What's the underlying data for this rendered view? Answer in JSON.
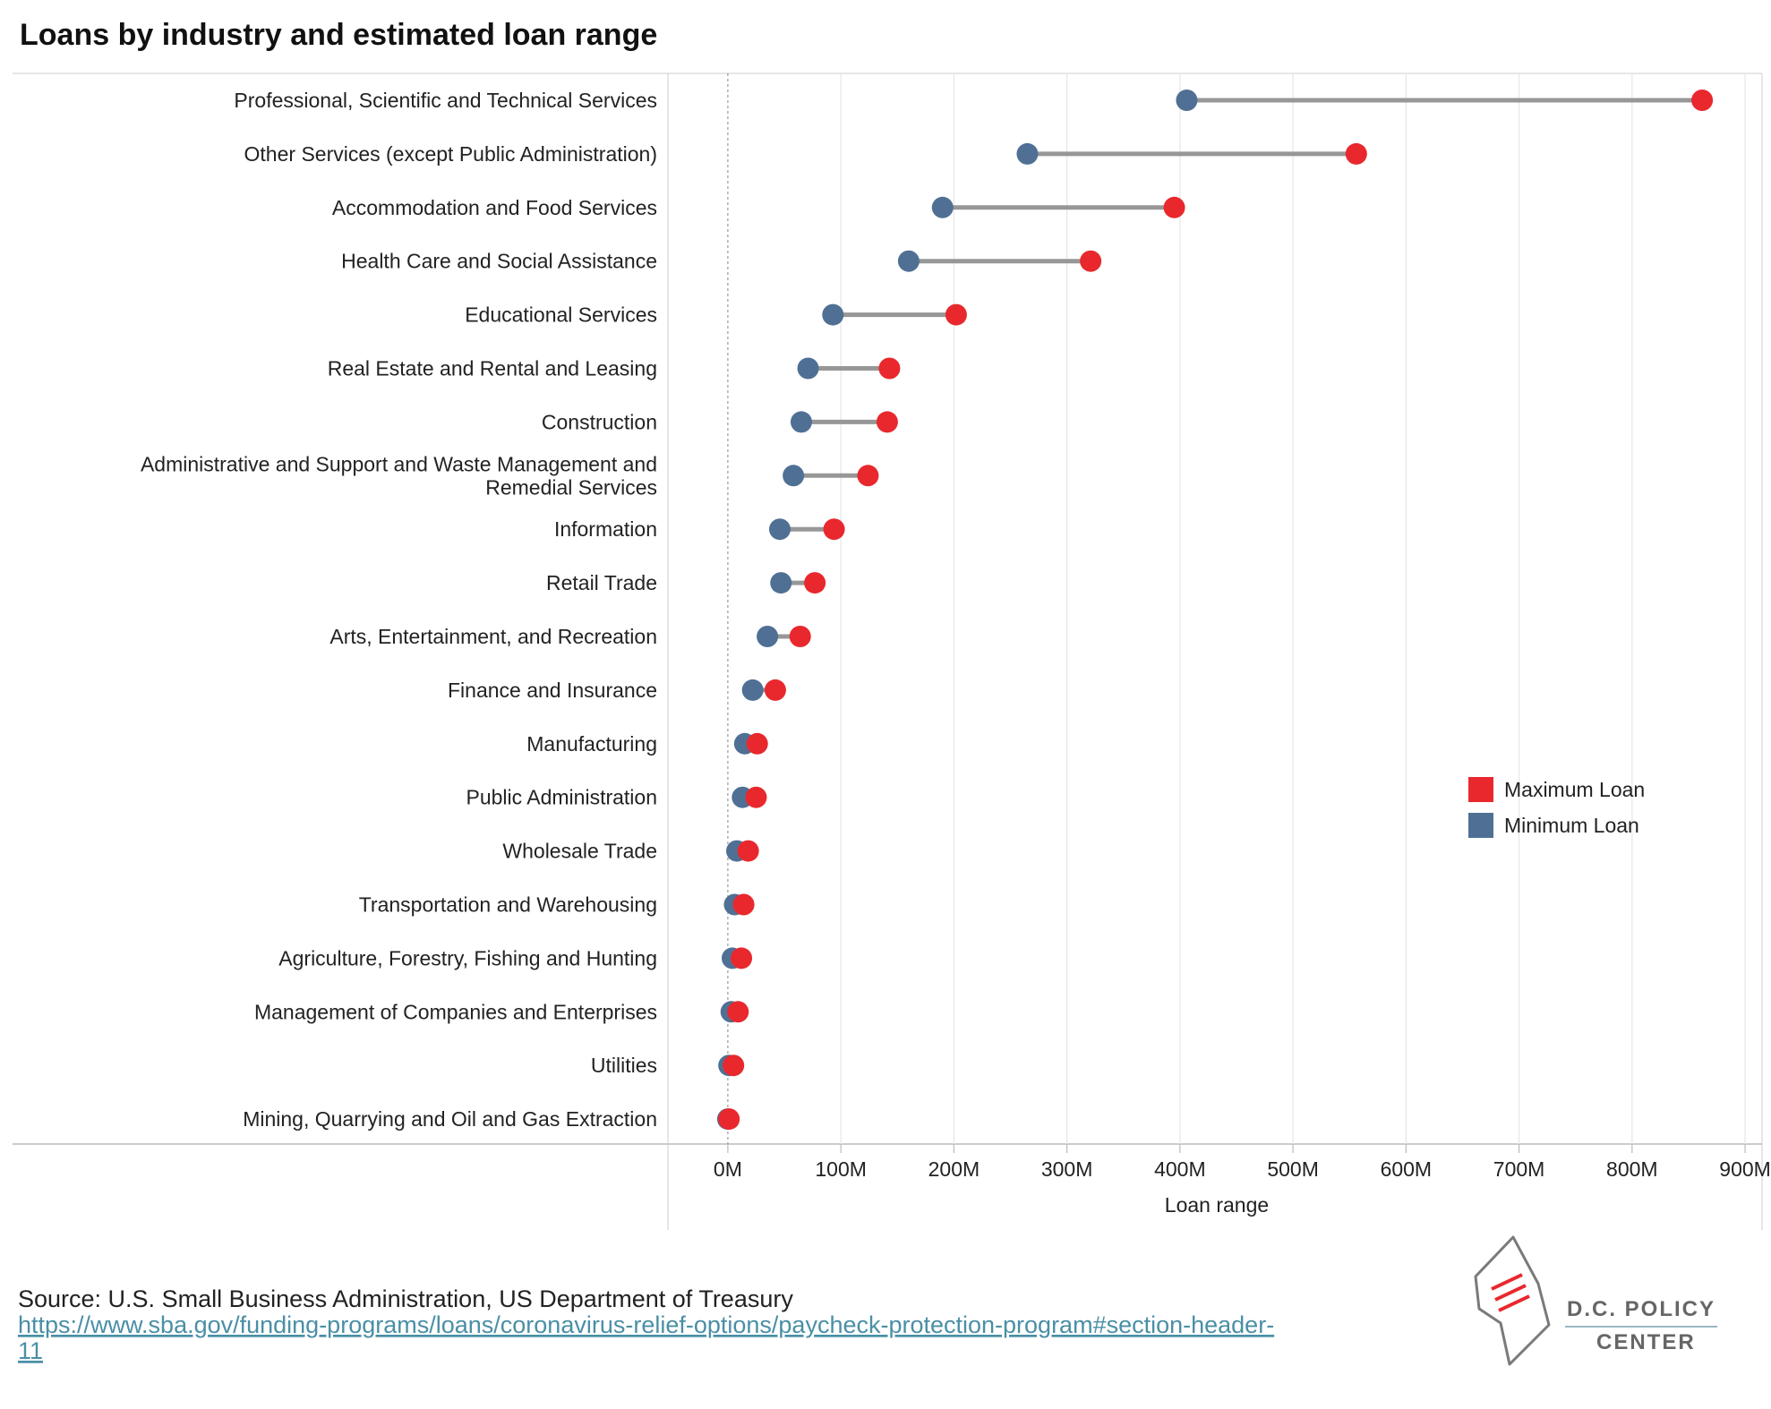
{
  "chart_data": {
    "type": "dumbbell",
    "title": "Loans by industry and estimated loan range",
    "xlabel": "Loan range",
    "ylabel": "",
    "xlim": [
      -53,
      915
    ],
    "ticks": [
      0,
      100,
      200,
      300,
      400,
      500,
      600,
      700,
      800,
      900
    ],
    "tick_labels": [
      "0M",
      "100M",
      "200M",
      "300M",
      "400M",
      "500M",
      "600M",
      "700M",
      "800M",
      "900M"
    ],
    "unit": "M",
    "grid": true,
    "legend_position": "right",
    "categories": [
      [
        "Professional, Scientific and Technical Services"
      ],
      [
        "Other Services (except Public Administration)"
      ],
      [
        "Accommodation and Food Services"
      ],
      [
        "Health Care and Social Assistance"
      ],
      [
        "Educational Services"
      ],
      [
        "Real Estate and Rental and Leasing"
      ],
      [
        "Construction"
      ],
      [
        "Administrative and Support and Waste Management and",
        "Remedial Services"
      ],
      [
        "Information"
      ],
      [
        "Retail Trade"
      ],
      [
        "Arts, Entertainment, and Recreation"
      ],
      [
        "Finance and Insurance"
      ],
      [
        "Manufacturing"
      ],
      [
        "Public Administration"
      ],
      [
        "Wholesale Trade"
      ],
      [
        "Transportation and Warehousing"
      ],
      [
        "Agriculture, Forestry, Fishing and Hunting"
      ],
      [
        "Management of Companies and Enterprises"
      ],
      [
        "Utilities"
      ],
      [
        "Mining, Quarrying and Oil and Gas Extraction"
      ]
    ],
    "series": [
      {
        "name": "Maximum Loan",
        "color": "#e8282d",
        "values": [
          862,
          556,
          395,
          321,
          202,
          143,
          141,
          124,
          94,
          77,
          64,
          42,
          26,
          25,
          18,
          14,
          12,
          9,
          5,
          1
        ]
      },
      {
        "name": "Minimum Loan",
        "color": "#4f7094",
        "values": [
          406,
          265,
          190,
          160,
          93,
          71,
          65,
          58,
          46,
          47,
          35,
          22,
          15,
          13,
          8,
          6,
          4,
          3,
          1,
          0
        ]
      }
    ],
    "legend": [
      "Maximum Loan",
      "Minimum Loan"
    ]
  },
  "colors": {
    "connector": "#979797",
    "grid": "#e6e6e6",
    "zero_line": "#999999",
    "frame": "#cccccc",
    "link": "#4a8fa6"
  },
  "footer": {
    "source": "Source: U.S. Small Business Administration, US Department of Treasury",
    "url_line1": "https://www.sba.gov/funding-programs/loans/coronavirus-relief-options/paycheck-protection-program#section-header-",
    "url_line2": "11"
  },
  "logo": {
    "line1": "D.C. POLICY",
    "line2": "CENTER",
    "icon": "dc-map-icon"
  }
}
